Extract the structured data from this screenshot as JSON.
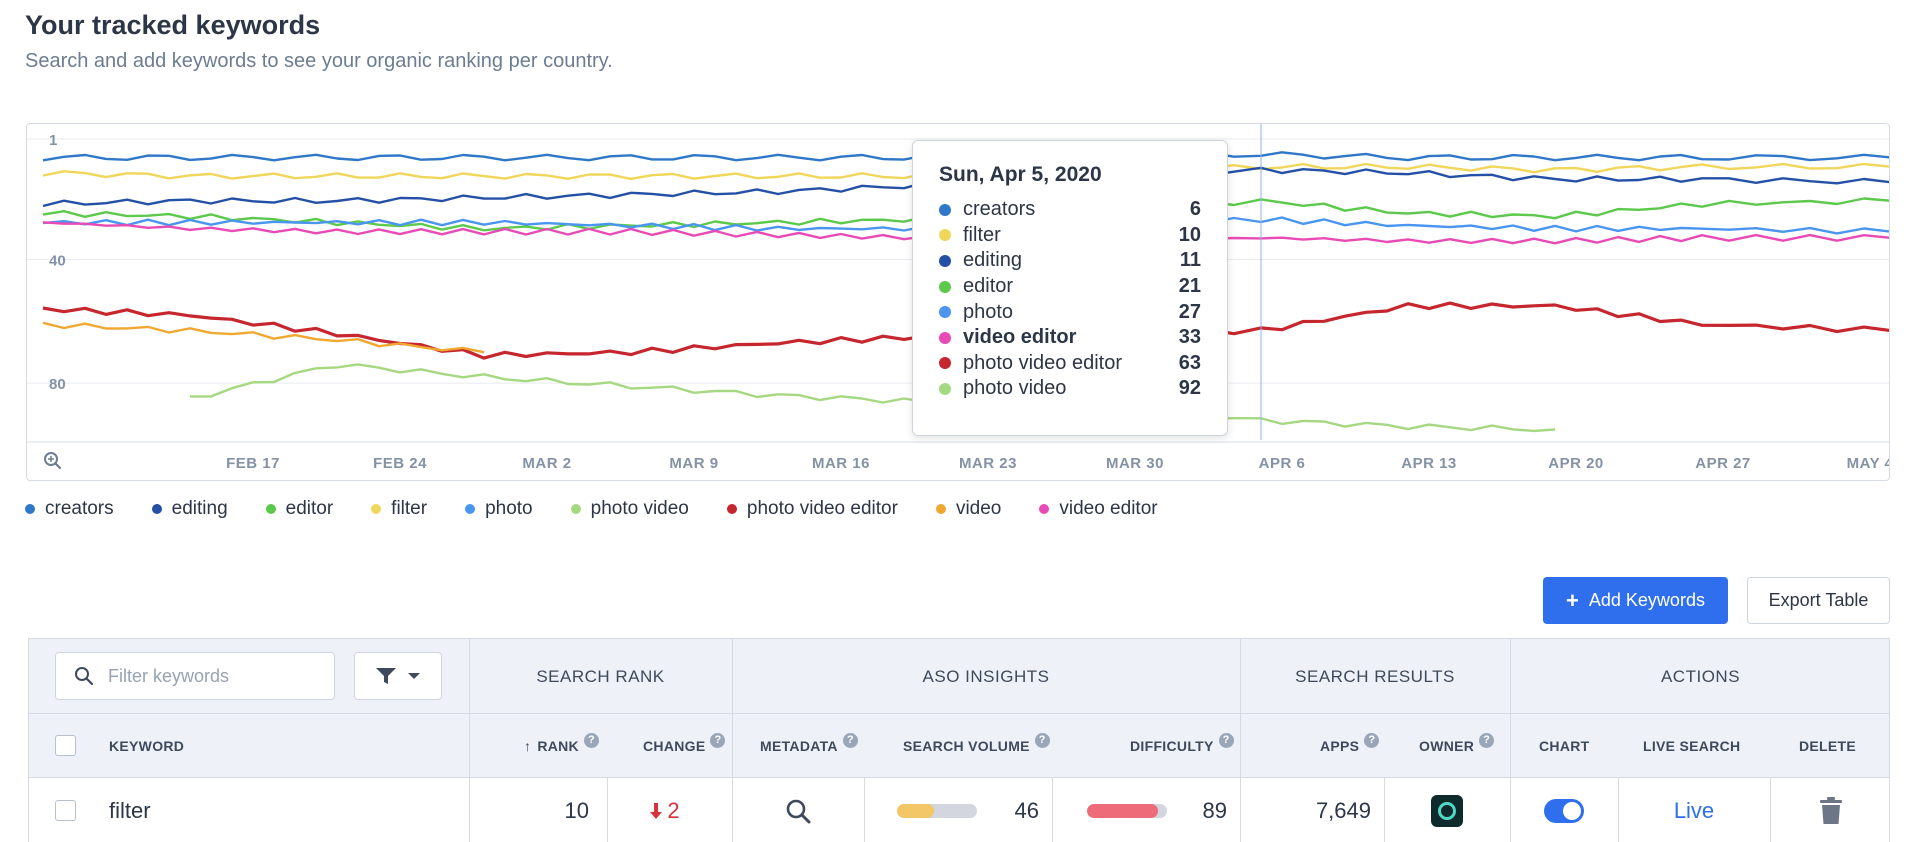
{
  "header": {
    "title": "Your tracked keywords",
    "subtitle": "Search and add keywords to see your organic ranking per country."
  },
  "colors": {
    "creators": "#2f77c8",
    "editing": "#2450a6",
    "editor": "#5cc94c",
    "filter": "#f0d65a",
    "photo": "#4a95f0",
    "photo video": "#a6d882",
    "photo video editor": "#c6262d",
    "video": "#f0a830",
    "video editor": "#e84bb5",
    "accent": "#2f6fed"
  },
  "chart_data": {
    "type": "line",
    "y_axis": {
      "inverted": true,
      "ylim": [
        1,
        100
      ],
      "ticks": [
        "1",
        "40",
        "80"
      ]
    },
    "x_tick_labels": [
      "FEB 17",
      "FEB 24",
      "MAR 2",
      "MAR 9",
      "MAR 16",
      "MAR 23",
      "MAR 30",
      "APR 6",
      "APR 13",
      "APR 20",
      "APR 27",
      "MAY 4"
    ],
    "xlim": [
      "2020-02-07",
      "2020-05-05"
    ],
    "hover_date": "2020-04-05",
    "grid": true,
    "series": [
      {
        "name": "creators",
        "points": [
          [
            "2020-02-07",
            7
          ],
          [
            "2020-02-14",
            7
          ],
          [
            "2020-02-21",
            7
          ],
          [
            "2020-02-28",
            7
          ],
          [
            "2020-03-06",
            7
          ],
          [
            "2020-03-13",
            7
          ],
          [
            "2020-03-20",
            7
          ],
          [
            "2020-03-27",
            6
          ],
          [
            "2020-04-05",
            6
          ],
          [
            "2020-04-12",
            7
          ],
          [
            "2020-04-19",
            7
          ],
          [
            "2020-04-26",
            7
          ],
          [
            "2020-05-05",
            7
          ]
        ]
      },
      {
        "name": "filter",
        "points": [
          [
            "2020-02-07",
            12
          ],
          [
            "2020-02-14",
            13
          ],
          [
            "2020-02-21",
            13
          ],
          [
            "2020-02-28",
            13
          ],
          [
            "2020-03-06",
            13
          ],
          [
            "2020-03-13",
            13
          ],
          [
            "2020-03-20",
            13
          ],
          [
            "2020-03-27",
            12
          ],
          [
            "2020-04-05",
            10
          ],
          [
            "2020-04-12",
            10
          ],
          [
            "2020-04-19",
            11
          ],
          [
            "2020-04-26",
            10
          ],
          [
            "2020-05-05",
            10
          ]
        ]
      },
      {
        "name": "editing",
        "points": [
          [
            "2020-02-07",
            22
          ],
          [
            "2020-02-14",
            21
          ],
          [
            "2020-02-21",
            21
          ],
          [
            "2020-02-28",
            20
          ],
          [
            "2020-03-06",
            19
          ],
          [
            "2020-03-13",
            18
          ],
          [
            "2020-03-20",
            16
          ],
          [
            "2020-03-27",
            15
          ],
          [
            "2020-04-05",
            11
          ],
          [
            "2020-04-12",
            12
          ],
          [
            "2020-04-19",
            14
          ],
          [
            "2020-04-26",
            14
          ],
          [
            "2020-05-05",
            15
          ]
        ]
      },
      {
        "name": "editor",
        "points": [
          [
            "2020-02-07",
            25
          ],
          [
            "2020-02-14",
            26
          ],
          [
            "2020-02-21",
            28
          ],
          [
            "2020-02-28",
            30
          ],
          [
            "2020-03-06",
            29
          ],
          [
            "2020-03-13",
            28
          ],
          [
            "2020-03-20",
            27
          ],
          [
            "2020-03-27",
            25
          ],
          [
            "2020-04-05",
            21
          ],
          [
            "2020-04-12",
            25
          ],
          [
            "2020-04-19",
            26
          ],
          [
            "2020-04-26",
            22
          ],
          [
            "2020-05-05",
            21
          ]
        ]
      },
      {
        "name": "photo",
        "points": [
          [
            "2020-02-07",
            28
          ],
          [
            "2020-02-14",
            28
          ],
          [
            "2020-02-21",
            28
          ],
          [
            "2020-02-28",
            28
          ],
          [
            "2020-03-06",
            29
          ],
          [
            "2020-03-13",
            30
          ],
          [
            "2020-03-20",
            30
          ],
          [
            "2020-03-27",
            29
          ],
          [
            "2020-04-05",
            27
          ],
          [
            "2020-04-12",
            29
          ],
          [
            "2020-04-19",
            30
          ],
          [
            "2020-04-26",
            30
          ],
          [
            "2020-05-05",
            31
          ]
        ]
      },
      {
        "name": "video editor",
        "points": [
          [
            "2020-02-07",
            28
          ],
          [
            "2020-02-14",
            30
          ],
          [
            "2020-02-21",
            31
          ],
          [
            "2020-02-28",
            31
          ],
          [
            "2020-03-06",
            31
          ],
          [
            "2020-03-13",
            32
          ],
          [
            "2020-03-20",
            33
          ],
          [
            "2020-03-27",
            34
          ],
          [
            "2020-04-05",
            33
          ],
          [
            "2020-04-12",
            34
          ],
          [
            "2020-04-19",
            34
          ],
          [
            "2020-04-26",
            33
          ],
          [
            "2020-05-05",
            33
          ]
        ]
      },
      {
        "name": "photo video editor",
        "points": [
          [
            "2020-02-07",
            56
          ],
          [
            "2020-02-14",
            58
          ],
          [
            "2020-02-21",
            64
          ],
          [
            "2020-02-28",
            71
          ],
          [
            "2020-03-06",
            70
          ],
          [
            "2020-03-13",
            67
          ],
          [
            "2020-03-20",
            65
          ],
          [
            "2020-03-27",
            64
          ],
          [
            "2020-04-05",
            63
          ],
          [
            "2020-04-12",
            55
          ],
          [
            "2020-04-19",
            55
          ],
          [
            "2020-04-26",
            61
          ],
          [
            "2020-05-05",
            63
          ]
        ]
      },
      {
        "name": "video",
        "points": [
          [
            "2020-02-07",
            61
          ],
          [
            "2020-02-14",
            63
          ],
          [
            "2020-02-21",
            66
          ],
          [
            "2020-02-28",
            70
          ]
        ]
      },
      {
        "name": "photo video",
        "points": [
          [
            "2020-02-14",
            85
          ],
          [
            "2020-02-21",
            74
          ],
          [
            "2020-02-28",
            78
          ],
          [
            "2020-03-06",
            81
          ],
          [
            "2020-03-13",
            84
          ],
          [
            "2020-03-20",
            86
          ],
          [
            "2020-03-27",
            88
          ],
          [
            "2020-04-05",
            92
          ],
          [
            "2020-04-12",
            94
          ],
          [
            "2020-04-19",
            95
          ]
        ]
      }
    ],
    "tooltip": {
      "date": "Sun, Apr 5, 2020",
      "rows": [
        {
          "name": "creators",
          "value": "6"
        },
        {
          "name": "filter",
          "value": "10"
        },
        {
          "name": "editing",
          "value": "11"
        },
        {
          "name": "editor",
          "value": "21"
        },
        {
          "name": "photo",
          "value": "27"
        },
        {
          "name": "video editor",
          "value": "33"
        },
        {
          "name": "photo video editor",
          "value": "63"
        },
        {
          "name": "photo video",
          "value": "92"
        }
      ]
    },
    "legend": [
      "creators",
      "editing",
      "editor",
      "filter",
      "photo",
      "photo video",
      "photo video editor",
      "video",
      "video editor"
    ]
  },
  "toolbar": {
    "add_label": "Add Keywords",
    "export_label": "Export Table"
  },
  "table": {
    "filter_placeholder": "Filter keywords",
    "groups": {
      "search_rank": "SEARCH RANK",
      "aso_insights": "ASO INSIGHTS",
      "search_results": "SEARCH RESULTS",
      "actions": "ACTIONS"
    },
    "columns": {
      "keyword": "KEYWORD",
      "rank": "RANK",
      "change": "CHANGE",
      "metadata": "METADATA",
      "search_volume": "SEARCH VOLUME",
      "difficulty": "DIFFICULTY",
      "apps": "APPS",
      "owner": "OWNER",
      "chart": "CHART",
      "live_search": "LIVE SEARCH",
      "delete": "DELETE"
    },
    "sort_arrow": "↑",
    "rows": [
      {
        "keyword": "filter",
        "rank": "10",
        "change": "2",
        "search_volume": 46,
        "difficulty": 89,
        "apps": "7,649",
        "live": "Live"
      }
    ]
  }
}
